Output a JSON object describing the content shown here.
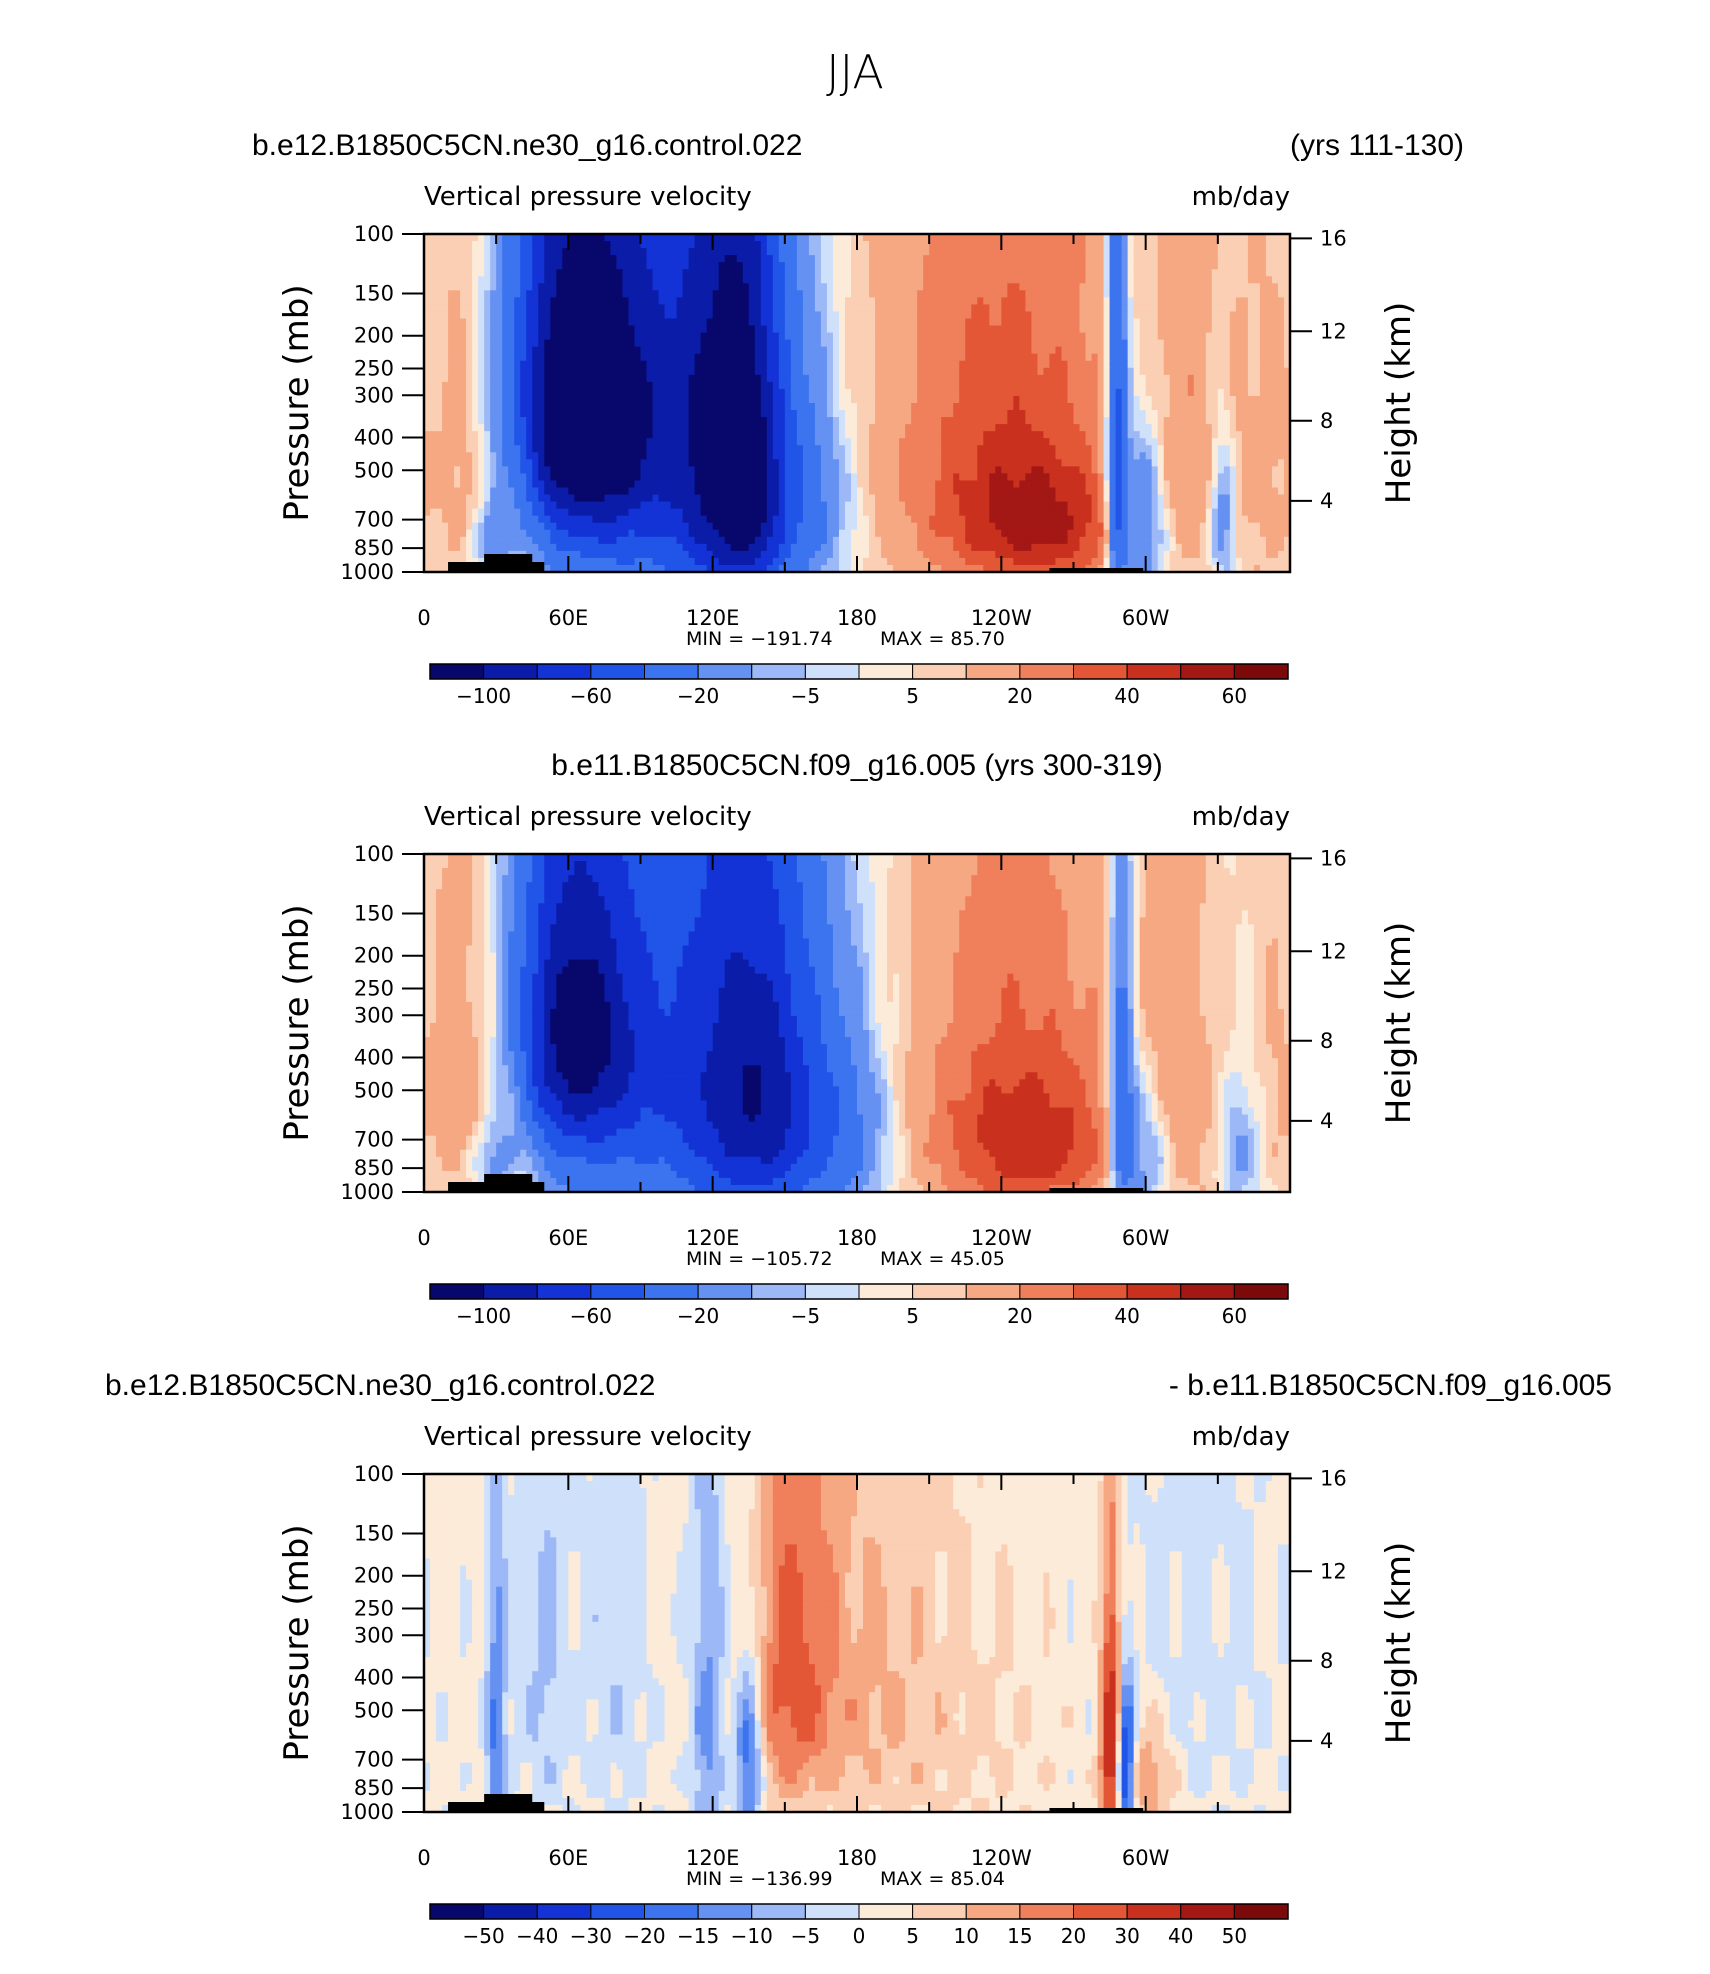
{
  "figure": {
    "title": "JJA"
  },
  "chart_data": [
    {
      "type": "heatmap",
      "title_left": "b.e12.B1850C5CN.ne30_g16.control.022",
      "title_right": "(yrs 111-130)",
      "title_center": "",
      "field_left": "Vertical pressure velocity",
      "field_right": "mb/day",
      "ylabel": "Pressure (mb)",
      "ylabel_right": "Height (km)",
      "x_ticks": [
        "0",
        "60E",
        "120E",
        "180",
        "120W",
        "60W"
      ],
      "y_ticks": [
        "100",
        "150",
        "200",
        "250",
        "300",
        "400",
        "500",
        "700",
        "850",
        "1000"
      ],
      "y_ticks_right": [
        "16",
        "12",
        "8",
        "4"
      ],
      "min_label": "MIN = −191.74",
      "max_label": "MAX = 85.70",
      "min": -191.74,
      "max": 85.7,
      "colorbar_labels": [
        "−100",
        "−60",
        "−20",
        "−5",
        "5",
        "20",
        "40",
        "60"
      ],
      "colorbar_levels": [
        -120,
        -100,
        -80,
        -60,
        -40,
        -20,
        -10,
        -5,
        0,
        5,
        10,
        20,
        30,
        40,
        50,
        60,
        80
      ],
      "features": [
        {
          "lon": 62,
          "p": 320,
          "v": -100,
          "sx": 22,
          "sp": 260
        },
        {
          "lon": 75,
          "p": 500,
          "v": -45,
          "sx": 30,
          "sp": 450
        },
        {
          "lon": 100,
          "p": 350,
          "v": -30,
          "sx": 25,
          "sp": 500
        },
        {
          "lon": 120,
          "p": 450,
          "v": -60,
          "sx": 12,
          "sp": 500
        },
        {
          "lon": 135,
          "p": 500,
          "v": -70,
          "sx": 10,
          "sp": 450
        },
        {
          "lon": 148,
          "p": 600,
          "v": -35,
          "sx": 15,
          "sp": 400
        },
        {
          "lon": 165,
          "p": 650,
          "v": -10,
          "sx": 15,
          "sp": 250
        },
        {
          "lon": 20,
          "p": 400,
          "v": 25,
          "sx": 10,
          "sp": 350
        },
        {
          "lon": 38,
          "p": 500,
          "v": 28,
          "sx": 8,
          "sp": 350
        },
        {
          "lon": 30,
          "p": 800,
          "v": -25,
          "sx": 6,
          "sp": 150
        },
        {
          "lon": 240,
          "p": 450,
          "v": 32,
          "sx": 35,
          "sp": 450
        },
        {
          "lon": 258,
          "p": 750,
          "v": 30,
          "sx": 25,
          "sp": 220
        },
        {
          "lon": 288,
          "p": 500,
          "v": -55,
          "sx": 3,
          "sp": 500
        },
        {
          "lon": 298,
          "p": 700,
          "v": -40,
          "sx": 8,
          "sp": 300
        },
        {
          "lon": 315,
          "p": 400,
          "v": 12,
          "sx": 12,
          "sp": 400
        },
        {
          "lon": 332,
          "p": 700,
          "v": -25,
          "sx": 4,
          "sp": 250
        },
        {
          "lon": 350,
          "p": 500,
          "v": 10,
          "sx": 12,
          "sp": 400
        }
      ],
      "bg": 4
    },
    {
      "type": "heatmap",
      "title_left": "",
      "title_right": "",
      "title_center": "b.e11.B1850C5CN.f09_g16.005 (yrs 300-319)",
      "field_left": "Vertical pressure velocity",
      "field_right": "mb/day",
      "ylabel": "Pressure (mb)",
      "ylabel_right": "Height (km)",
      "x_ticks": [
        "0",
        "60E",
        "120E",
        "180",
        "120W",
        "60W"
      ],
      "y_ticks": [
        "100",
        "150",
        "200",
        "250",
        "300",
        "400",
        "500",
        "700",
        "850",
        "1000"
      ],
      "y_ticks_right": [
        "16",
        "12",
        "8",
        "4"
      ],
      "min_label": "MIN = −105.72",
      "max_label": "MAX = 45.05",
      "min": -105.72,
      "max": 45.05,
      "colorbar_labels": [
        "−100",
        "−60",
        "−20",
        "−5",
        "5",
        "20",
        "40",
        "60"
      ],
      "colorbar_levels": [
        -120,
        -100,
        -80,
        -60,
        -40,
        -20,
        -10,
        -5,
        0,
        5,
        10,
        20,
        30,
        40,
        50,
        60,
        80
      ],
      "features": [
        {
          "lon": 62,
          "p": 330,
          "v": -85,
          "sx": 20,
          "sp": 250
        },
        {
          "lon": 75,
          "p": 500,
          "v": -40,
          "sx": 28,
          "sp": 450
        },
        {
          "lon": 120,
          "p": 450,
          "v": -50,
          "sx": 18,
          "sp": 500
        },
        {
          "lon": 140,
          "p": 500,
          "v": -55,
          "sx": 15,
          "sp": 450
        },
        {
          "lon": 160,
          "p": 600,
          "v": -35,
          "sx": 18,
          "sp": 380
        },
        {
          "lon": 178,
          "p": 700,
          "v": -12,
          "sx": 15,
          "sp": 250
        },
        {
          "lon": 20,
          "p": 400,
          "v": 22,
          "sx": 10,
          "sp": 350
        },
        {
          "lon": 38,
          "p": 500,
          "v": 25,
          "sx": 8,
          "sp": 350
        },
        {
          "lon": 30,
          "p": 800,
          "v": -22,
          "sx": 6,
          "sp": 150
        },
        {
          "lon": 245,
          "p": 500,
          "v": 28,
          "sx": 32,
          "sp": 450
        },
        {
          "lon": 255,
          "p": 760,
          "v": 24,
          "sx": 25,
          "sp": 220
        },
        {
          "lon": 290,
          "p": 550,
          "v": -40,
          "sx": 4,
          "sp": 450
        },
        {
          "lon": 300,
          "p": 750,
          "v": -30,
          "sx": 8,
          "sp": 260
        },
        {
          "lon": 312,
          "p": 500,
          "v": 15,
          "sx": 12,
          "sp": 400
        },
        {
          "lon": 340,
          "p": 750,
          "v": -18,
          "sx": 6,
          "sp": 250
        },
        {
          "lon": 355,
          "p": 500,
          "v": 8,
          "sx": 12,
          "sp": 400
        }
      ],
      "bg": 3
    },
    {
      "type": "heatmap",
      "title_left": "b.e12.B1850C5CN.ne30_g16.control.022",
      "title_right": "- b.e11.B1850C5CN.f09_g16.005",
      "title_center": "",
      "field_left": "Vertical pressure velocity",
      "field_right": "mb/day",
      "ylabel": "Pressure (mb)",
      "ylabel_right": "Height (km)",
      "x_ticks": [
        "0",
        "60E",
        "120E",
        "180",
        "120W",
        "60W"
      ],
      "y_ticks": [
        "100",
        "150",
        "200",
        "250",
        "300",
        "400",
        "500",
        "700",
        "850",
        "1000"
      ],
      "y_ticks_right": [
        "16",
        "12",
        "8",
        "4"
      ],
      "min_label": "MIN = −136.99",
      "max_label": "MAX = 85.04",
      "min": -136.99,
      "max": 85.04,
      "colorbar_labels": [
        "−50",
        "−40",
        "−30",
        "−20",
        "−15",
        "−10",
        "−5",
        "0",
        "5",
        "10",
        "15",
        "20",
        "30",
        "40",
        "50"
      ],
      "colorbar_levels": [
        -60,
        -50,
        -40,
        -30,
        -20,
        -15,
        -10,
        -5,
        0,
        5,
        10,
        15,
        20,
        30,
        40,
        50,
        60
      ],
      "features": [
        {
          "lon": 30,
          "p": 600,
          "v": -18,
          "sx": 3,
          "sp": 400
        },
        {
          "lon": 50,
          "p": 400,
          "v": -8,
          "sx": 8,
          "sp": 400
        },
        {
          "lon": 80,
          "p": 400,
          "v": -6,
          "sx": 10,
          "sp": 400
        },
        {
          "lon": 118,
          "p": 550,
          "v": -15,
          "sx": 5,
          "sp": 500
        },
        {
          "lon": 135,
          "p": 700,
          "v": -25,
          "sx": 4,
          "sp": 300
        },
        {
          "lon": 152,
          "p": 400,
          "v": 16,
          "sx": 12,
          "sp": 350
        },
        {
          "lon": 175,
          "p": 400,
          "v": 8,
          "sx": 25,
          "sp": 400
        },
        {
          "lon": 220,
          "p": 600,
          "v": 4,
          "sx": 30,
          "sp": 400
        },
        {
          "lon": 286,
          "p": 650,
          "v": 45,
          "sx": 3,
          "sp": 350
        },
        {
          "lon": 291,
          "p": 750,
          "v": -45,
          "sx": 3,
          "sp": 250
        },
        {
          "lon": 300,
          "p": 800,
          "v": 15,
          "sx": 8,
          "sp": 200
        },
        {
          "lon": 320,
          "p": 400,
          "v": -4,
          "sx": 25,
          "sp": 400
        }
      ],
      "bg": 2
    }
  ]
}
